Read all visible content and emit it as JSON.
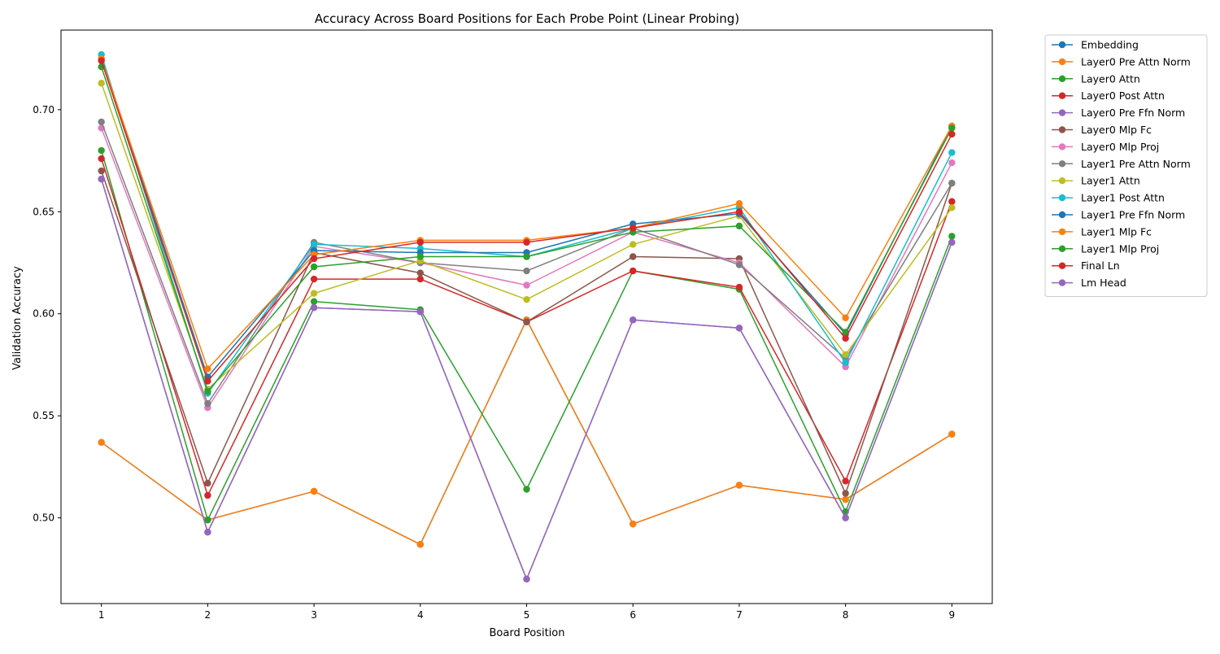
{
  "chart_data": {
    "type": "line",
    "title": "Accuracy Across Board Positions for Each Probe Point (Linear Probing)",
    "xlabel": "Board Position",
    "ylabel": "Validation Accuracy",
    "x": [
      1,
      2,
      3,
      4,
      5,
      6,
      7,
      8,
      9
    ],
    "xlim": [
      0.62,
      9.38
    ],
    "ylim": [
      0.458,
      0.739
    ],
    "yticks": [
      0.5,
      0.55,
      0.6,
      0.65,
      0.7
    ],
    "ytick_labels": [
      "0.50",
      "0.55",
      "0.60",
      "0.65",
      "0.70"
    ],
    "xtick_labels": [
      "1",
      "2",
      "3",
      "4",
      "5",
      "6",
      "7",
      "8",
      "9"
    ],
    "grid": false,
    "legend_position": "outside-top-right",
    "series": [
      {
        "name": "Embedding",
        "color": "#1f77b4",
        "values": [
          0.537,
          0.499,
          0.513,
          0.487,
          0.597,
          0.497,
          0.516,
          0.509,
          0.541
        ]
      },
      {
        "name": "Layer0 Pre Attn Norm",
        "color": "#ff7f0e",
        "values": [
          0.537,
          0.499,
          0.513,
          0.487,
          0.597,
          0.497,
          0.516,
          0.509,
          0.541
        ]
      },
      {
        "name": "Layer0 Attn",
        "color": "#2ca02c",
        "values": [
          0.68,
          0.499,
          0.606,
          0.602,
          0.514,
          0.621,
          0.612,
          0.503,
          0.638
        ]
      },
      {
        "name": "Layer0 Post Attn",
        "color": "#d62728",
        "values": [
          0.676,
          0.511,
          0.617,
          0.617,
          0.596,
          0.621,
          0.613,
          0.518,
          0.655
        ]
      },
      {
        "name": "Layer0 Pre Ffn Norm",
        "color": "#9467bd",
        "values": [
          0.666,
          0.493,
          0.603,
          0.601,
          0.47,
          0.597,
          0.593,
          0.5,
          0.635
        ]
      },
      {
        "name": "Layer0 Mlp Fc",
        "color": "#8c564b",
        "values": [
          0.67,
          0.517,
          0.63,
          0.62,
          0.596,
          0.628,
          0.627,
          0.512,
          0.664
        ]
      },
      {
        "name": "Layer0 Mlp Proj",
        "color": "#e377c2",
        "values": [
          0.691,
          0.554,
          0.633,
          0.625,
          0.614,
          0.64,
          0.625,
          0.574,
          0.674
        ]
      },
      {
        "name": "Layer1 Pre Attn Norm",
        "color": "#7f7f7f",
        "values": [
          0.694,
          0.556,
          0.635,
          0.625,
          0.621,
          0.642,
          0.624,
          0.578,
          0.664
        ]
      },
      {
        "name": "Layer1 Attn",
        "color": "#bcbd22",
        "values": [
          0.713,
          0.563,
          0.61,
          0.626,
          0.607,
          0.634,
          0.648,
          0.58,
          0.652
        ]
      },
      {
        "name": "Layer1 Post Attn",
        "color": "#17becf",
        "values": [
          0.727,
          0.561,
          0.634,
          0.632,
          0.628,
          0.642,
          0.652,
          0.576,
          0.679
        ]
      },
      {
        "name": "Layer1 Pre Ffn Norm",
        "color": "#1f77b4",
        "values": [
          0.725,
          0.569,
          0.631,
          0.63,
          0.63,
          0.644,
          0.649,
          0.59,
          0.692
        ]
      },
      {
        "name": "Layer1 Mlp Fc",
        "color": "#ff7f0e",
        "values": [
          0.725,
          0.573,
          0.629,
          0.636,
          0.636,
          0.642,
          0.654,
          0.598,
          0.692
        ]
      },
      {
        "name": "Layer1 Mlp Proj",
        "color": "#2ca02c",
        "values": [
          0.721,
          0.562,
          0.623,
          0.628,
          0.628,
          0.64,
          0.643,
          0.591,
          0.691
        ]
      },
      {
        "name": "Final Ln",
        "color": "#d62728",
        "values": [
          0.724,
          0.567,
          0.627,
          0.635,
          0.635,
          0.642,
          0.65,
          0.588,
          0.688
        ]
      },
      {
        "name": "Lm Head",
        "color": "#9467bd",
        "values": [
          0.666,
          0.493,
          0.603,
          0.601,
          0.47,
          0.597,
          0.593,
          0.5,
          0.635
        ]
      }
    ]
  }
}
